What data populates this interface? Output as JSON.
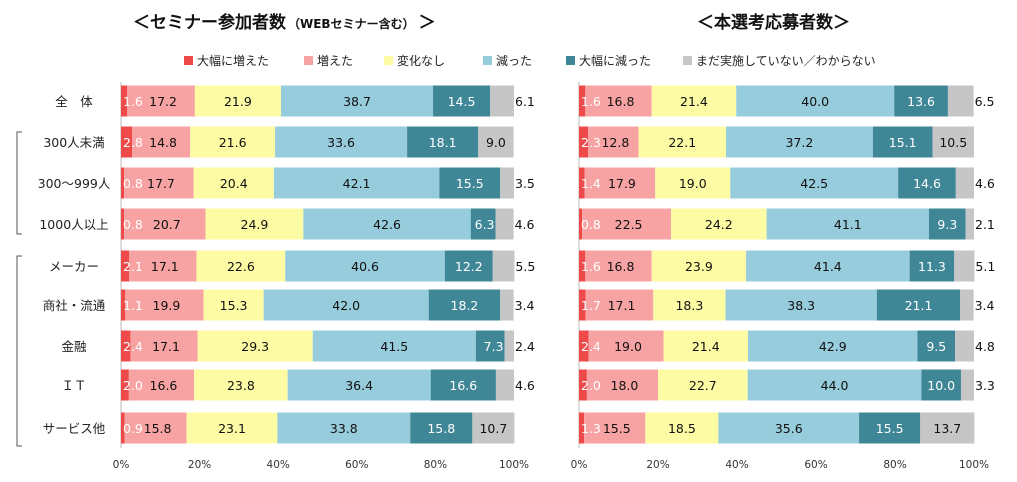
{
  "legend": [
    {
      "label": "大幅に増えた",
      "color": "#ef4a4a"
    },
    {
      "label": "増えた",
      "color": "#f8a3a3"
    },
    {
      "label": "変化なし",
      "color": "#fdfca5"
    },
    {
      "label": "減った",
      "color": "#96ccdc"
    },
    {
      "label": "大幅に減った",
      "color": "#3f8797"
    },
    {
      "label": "まだ実施していない／わからない",
      "color": "#c6c6c6"
    }
  ],
  "categories": [
    "全　体",
    "300人未満",
    "300～999人",
    "1000人以上",
    "メーカー",
    "商社・流通",
    "金融",
    "ＩＴ",
    "サービス他"
  ],
  "chart_data": [
    {
      "type": "bar",
      "stacked": true,
      "orientation": "horizontal",
      "title": "＜セミナー参加者数",
      "title_sub": "（WEBセミナー含む）",
      "title_end": "＞",
      "xlim": [
        0,
        100
      ],
      "ticks": [
        "0%",
        "20%",
        "40%",
        "60%",
        "80%",
        "100%"
      ],
      "series": [
        {
          "name": "大幅に増えた",
          "values": [
            1.6,
            2.8,
            0.8,
            0.8,
            2.1,
            1.1,
            2.4,
            2.0,
            0.9
          ]
        },
        {
          "name": "増えた",
          "values": [
            17.2,
            14.8,
            17.7,
            20.7,
            17.1,
            19.9,
            17.1,
            16.6,
            15.8
          ]
        },
        {
          "name": "変化なし",
          "values": [
            21.9,
            21.6,
            20.4,
            24.9,
            22.6,
            15.3,
            29.3,
            23.8,
            23.1
          ]
        },
        {
          "name": "減った",
          "values": [
            38.7,
            33.6,
            42.1,
            42.6,
            40.6,
            42.0,
            41.5,
            36.4,
            33.8
          ]
        },
        {
          "name": "大幅に減った",
          "values": [
            14.5,
            18.1,
            15.5,
            6.3,
            12.2,
            18.2,
            7.3,
            16.6,
            15.8
          ]
        },
        {
          "name": "まだ実施していない／わからない",
          "values": [
            6.1,
            9.0,
            3.5,
            4.6,
            5.5,
            3.4,
            2.4,
            4.6,
            10.7
          ]
        }
      ]
    },
    {
      "type": "bar",
      "stacked": true,
      "orientation": "horizontal",
      "title": "＜本選考応募者数＞",
      "xlim": [
        0,
        100
      ],
      "ticks": [
        "0%",
        "20%",
        "40%",
        "60%",
        "80%",
        "100%"
      ],
      "series": [
        {
          "name": "大幅に増えた",
          "values": [
            1.6,
            2.3,
            1.4,
            0.8,
            1.6,
            1.7,
            2.4,
            2.0,
            1.3
          ]
        },
        {
          "name": "増えた",
          "values": [
            16.8,
            12.8,
            17.9,
            22.5,
            16.8,
            17.1,
            19.0,
            18.0,
            15.5
          ]
        },
        {
          "name": "変化なし",
          "values": [
            21.4,
            22.1,
            19.0,
            24.2,
            23.9,
            18.3,
            21.4,
            22.7,
            18.5
          ]
        },
        {
          "name": "減った",
          "values": [
            40.0,
            37.2,
            42.5,
            41.1,
            41.4,
            38.3,
            42.9,
            44.0,
            35.6
          ]
        },
        {
          "name": "大幅に減った",
          "values": [
            13.6,
            15.1,
            14.6,
            9.3,
            11.3,
            21.1,
            9.5,
            10.0,
            15.5
          ]
        },
        {
          "name": "まだ実施していない／わからない",
          "values": [
            6.5,
            10.5,
            4.6,
            2.1,
            5.1,
            3.4,
            4.8,
            3.3,
            13.7
          ]
        }
      ]
    }
  ]
}
